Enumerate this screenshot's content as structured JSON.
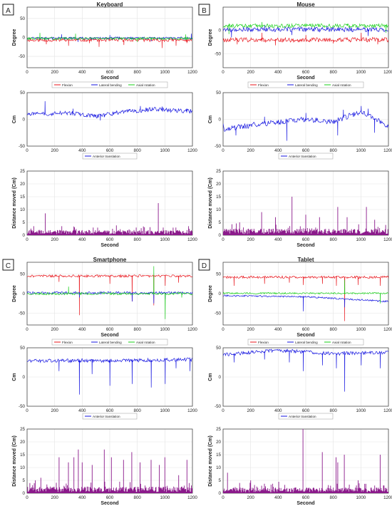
{
  "figure": {
    "panels": [
      {
        "letter": "A",
        "title": "Keyboard"
      },
      {
        "letter": "B",
        "title": "Mouse"
      },
      {
        "letter": "C",
        "title": "Smartphone"
      },
      {
        "letter": "D",
        "title": "Tablet"
      }
    ]
  },
  "colors": {
    "flexion": "#e8141b",
    "lateral_bending": "#1414e0",
    "axial_rotation": "#1ad01a",
    "anterior_translation": "#1414e0",
    "distance": "#8b1a8b",
    "grid": "#e3e3e3",
    "axis": "#333333"
  },
  "legends": {
    "angle": [
      "Flexion",
      "Lateral bending",
      "Axial rotation"
    ],
    "translation": [
      "Anterior translation"
    ]
  },
  "chart_data": [
    {
      "panel": "A",
      "type": "line",
      "title": "Keyboard",
      "xlabel": "Second",
      "ylabel": "Degree",
      "xlim": [
        0,
        1200
      ],
      "xticks": [
        0,
        200,
        400,
        600,
        800,
        1000,
        1200
      ],
      "ylim": [
        -80,
        80
      ],
      "yticks": [
        -50,
        0,
        50
      ],
      "grid": true,
      "legend": "bottom",
      "series": [
        {
          "name": "Flexion",
          "baseline": -7,
          "noise": 4,
          "spikes": [
            [
              140,
              -18
            ],
            [
              300,
              -22
            ],
            [
              450,
              -15
            ],
            [
              520,
              -25
            ],
            [
              700,
              -20
            ],
            [
              980,
              -28
            ],
            [
              1080,
              -22
            ],
            [
              1160,
              -15
            ]
          ]
        },
        {
          "name": "Lateral bending",
          "baseline": -2,
          "noise": 3,
          "spikes": [
            [
              250,
              8
            ],
            [
              370,
              -12
            ],
            [
              600,
              6
            ],
            [
              900,
              -10
            ],
            [
              1190,
              10
            ]
          ]
        },
        {
          "name": "Axial rotation",
          "baseline": -3,
          "noise": 3,
          "spikes": [
            [
              90,
              12
            ],
            [
              350,
              10
            ],
            [
              800,
              -12
            ],
            [
              1150,
              8
            ]
          ]
        }
      ]
    },
    {
      "panel": "A",
      "type": "line",
      "xlabel": "",
      "ylabel": "Cm",
      "xlim": [
        0,
        1200
      ],
      "xticks": [
        0,
        200,
        400,
        600,
        800,
        1000,
        1200
      ],
      "ylim": [
        -50,
        50
      ],
      "yticks": [
        -50,
        0,
        50
      ],
      "grid": true,
      "legend": "bottom",
      "series": [
        {
          "name": "Anterior translation",
          "baseline": 12,
          "noise": 4,
          "spikes": [
            [
              130,
              34
            ],
            [
              330,
              20
            ],
            [
              430,
              5
            ],
            [
              530,
              -2
            ],
            [
              560,
              4
            ],
            [
              820,
              25
            ],
            [
              980,
              24
            ],
            [
              1160,
              20
            ]
          ],
          "trend": [
            [
              0,
              10
            ],
            [
              300,
              12
            ],
            [
              500,
              6
            ],
            [
              700,
              14
            ],
            [
              900,
              19
            ],
            [
              1200,
              15
            ]
          ]
        }
      ]
    },
    {
      "panel": "A",
      "type": "bar",
      "xlabel": "Second",
      "ylabel": "Distance moved (Cm)",
      "xlim": [
        0,
        1200
      ],
      "xticks": [
        0,
        200,
        400,
        600,
        800,
        1000,
        1200
      ],
      "ylim": [
        0,
        25
      ],
      "yticks": [
        0,
        5,
        10,
        15,
        20,
        25
      ],
      "grid": true,
      "baseline": 1.2,
      "spikes": [
        [
          130,
          8.5
        ],
        [
          250,
          3.5
        ],
        [
          480,
          3
        ],
        [
          620,
          2.5
        ],
        [
          790,
          3
        ],
        [
          950,
          12.5
        ],
        [
          1080,
          3
        ],
        [
          1170,
          3.5
        ]
      ]
    },
    {
      "panel": "B",
      "type": "line",
      "title": "Mouse",
      "xlabel": "Second",
      "ylabel": "Degree",
      "xlim": [
        0,
        1200
      ],
      "xticks": [
        0,
        200,
        400,
        600,
        800,
        1000,
        1200
      ],
      "ylim": [
        -80,
        50
      ],
      "yticks": [
        -50,
        0
      ],
      "grid": true,
      "legend": "bottom",
      "series": [
        {
          "name": "Flexion",
          "baseline": -20,
          "noise": 5,
          "spikes": [
            [
              100,
              -30
            ],
            [
              280,
              -5
            ],
            [
              380,
              -32
            ],
            [
              600,
              -10
            ],
            [
              800,
              -28
            ],
            [
              1000,
              -5
            ],
            [
              1120,
              -30
            ]
          ]
        },
        {
          "name": "Lateral bending",
          "baseline": 2,
          "noise": 5,
          "spikes": [
            [
              60,
              -15
            ],
            [
              300,
              12
            ],
            [
              500,
              -10
            ],
            [
              750,
              10
            ],
            [
              1050,
              -12
            ]
          ]
        },
        {
          "name": "Axial rotation",
          "baseline": 10,
          "noise": 4,
          "spikes": [
            [
              40,
              -8
            ],
            [
              280,
              18
            ],
            [
              500,
              15
            ],
            [
              900,
              14
            ],
            [
              1180,
              -5
            ]
          ]
        }
      ]
    },
    {
      "panel": "B",
      "type": "line",
      "xlabel": "",
      "ylabel": "Cm",
      "xlim": [
        0,
        1200
      ],
      "xticks": [
        0,
        200,
        400,
        600,
        800,
        1000,
        1200
      ],
      "ylim": [
        -50,
        50
      ],
      "yticks": [
        -50,
        0,
        50
      ],
      "grid": true,
      "legend": "bottom",
      "series": [
        {
          "name": "Anterior translation",
          "baseline": -8,
          "noise": 5,
          "spikes": [
            [
              90,
              -30
            ],
            [
              300,
              5
            ],
            [
              460,
              -40
            ],
            [
              600,
              12
            ],
            [
              830,
              -30
            ],
            [
              870,
              18
            ],
            [
              1000,
              25
            ],
            [
              1050,
              20
            ],
            [
              1100,
              -25
            ]
          ],
          "trend": [
            [
              0,
              -18
            ],
            [
              300,
              -8
            ],
            [
              600,
              0
            ],
            [
              800,
              -5
            ],
            [
              1000,
              15
            ],
            [
              1200,
              -12
            ]
          ]
        }
      ]
    },
    {
      "panel": "B",
      "type": "bar",
      "xlabel": "Second",
      "ylabel": "Distance moved (Cm)",
      "xlim": [
        0,
        1200
      ],
      "xticks": [
        0,
        200,
        400,
        600,
        800,
        1000,
        1200
      ],
      "ylim": [
        0,
        25
      ],
      "yticks": [
        0,
        5,
        10,
        15,
        20,
        25
      ],
      "grid": true,
      "baseline": 1.5,
      "spikes": [
        [
          120,
          5
        ],
        [
          280,
          9
        ],
        [
          380,
          7
        ],
        [
          500,
          15
        ],
        [
          600,
          8
        ],
        [
          700,
          7
        ],
        [
          830,
          11
        ],
        [
          900,
          7
        ],
        [
          1040,
          11
        ],
        [
          1100,
          6
        ],
        [
          1180,
          4
        ]
      ]
    },
    {
      "panel": "C",
      "type": "line",
      "title": "Smartphone",
      "xlabel": "Second",
      "ylabel": "Degree",
      "xlim": [
        0,
        1200
      ],
      "xticks": [
        0,
        200,
        400,
        600,
        800,
        1000,
        1200
      ],
      "ylim": [
        -80,
        80
      ],
      "yticks": [
        -50,
        0,
        50
      ],
      "grid": true,
      "legend": "bottom",
      "series": [
        {
          "name": "Flexion",
          "baseline": 45,
          "noise": 3,
          "spikes": [
            [
              230,
              30
            ],
            [
              380,
              -55
            ],
            [
              600,
              25
            ],
            [
              760,
              -20
            ],
            [
              920,
              -30
            ],
            [
              1000,
              20
            ],
            [
              1100,
              28
            ]
          ]
        },
        {
          "name": "Lateral bending",
          "baseline": 2,
          "noise": 3,
          "spikes": [
            [
              380,
              -10
            ],
            [
              760,
              -20
            ],
            [
              920,
              -25
            ],
            [
              1000,
              -15
            ]
          ]
        },
        {
          "name": "Axial rotation",
          "baseline": 0,
          "noise": 3,
          "spikes": [
            [
              300,
              18
            ],
            [
              920,
              70
            ],
            [
              1000,
              -65
            ],
            [
              1120,
              -10
            ]
          ]
        }
      ]
    },
    {
      "panel": "C",
      "type": "line",
      "xlabel": "",
      "ylabel": "Cm",
      "xlim": [
        0,
        1200
      ],
      "xticks": [
        0,
        200,
        400,
        600,
        800,
        1000,
        1200
      ],
      "ylim": [
        -50,
        50
      ],
      "yticks": [
        -50,
        0,
        50
      ],
      "grid": true,
      "legend": "bottom",
      "series": [
        {
          "name": "Anterior translation",
          "baseline": 30,
          "noise": 3,
          "spikes": [
            [
              230,
              10
            ],
            [
              380,
              -30
            ],
            [
              470,
              5
            ],
            [
              600,
              -15
            ],
            [
              760,
              -12
            ],
            [
              900,
              -18
            ],
            [
              1000,
              -12
            ],
            [
              1080,
              15
            ],
            [
              1180,
              10
            ]
          ],
          "trend": [
            [
              0,
              28
            ],
            [
              600,
              28
            ],
            [
              1200,
              30
            ]
          ]
        }
      ]
    },
    {
      "panel": "C",
      "type": "bar",
      "xlabel": "Second",
      "ylabel": "Distance moved (Cm)",
      "xlim": [
        0,
        1200
      ],
      "xticks": [
        0,
        200,
        400,
        600,
        800,
        1000,
        1200
      ],
      "ylim": [
        0,
        25
      ],
      "yticks": [
        0,
        5,
        10,
        15,
        20,
        25
      ],
      "grid": true,
      "baseline": 1.5,
      "spikes": [
        [
          60,
          5
        ],
        [
          100,
          6
        ],
        [
          230,
          14
        ],
        [
          300,
          12
        ],
        [
          340,
          14
        ],
        [
          370,
          17
        ],
        [
          400,
          12
        ],
        [
          470,
          11
        ],
        [
          560,
          17
        ],
        [
          610,
          14
        ],
        [
          700,
          13
        ],
        [
          760,
          16
        ],
        [
          820,
          12
        ],
        [
          900,
          13
        ],
        [
          960,
          11
        ],
        [
          1000,
          14
        ],
        [
          1100,
          7
        ],
        [
          1160,
          13
        ]
      ]
    },
    {
      "panel": "D",
      "type": "line",
      "title": "Tablet",
      "xlabel": "Second",
      "ylabel": "Degree",
      "xlim": [
        0,
        1200
      ],
      "xticks": [
        0,
        200,
        400,
        600,
        800,
        1000,
        1200
      ],
      "ylim": [
        -80,
        80
      ],
      "yticks": [
        -50,
        0,
        50
      ],
      "grid": true,
      "legend": "bottom",
      "series": [
        {
          "name": "Flexion",
          "baseline": 42,
          "noise": 3,
          "spikes": [
            [
              80,
              20
            ],
            [
              300,
              25
            ],
            [
              480,
              28
            ],
            [
              580,
              22
            ],
            [
              720,
              25
            ],
            [
              820,
              20
            ],
            [
              880,
              -70
            ],
            [
              980,
              22
            ],
            [
              1140,
              20
            ]
          ]
        },
        {
          "name": "Lateral bending",
          "baseline": -12,
          "noise": 2,
          "spikes": [
            [
              580,
              -45
            ],
            [
              880,
              -35
            ],
            [
              1140,
              -20
            ]
          ],
          "trend": [
            [
              0,
              -5
            ],
            [
              600,
              -8
            ],
            [
              1200,
              -20
            ]
          ]
        },
        {
          "name": "Axial rotation",
          "baseline": 1,
          "noise": 2,
          "spikes": [
            [
              880,
              35
            ],
            [
              1140,
              -25
            ]
          ]
        }
      ]
    },
    {
      "panel": "D",
      "type": "line",
      "xlabel": "",
      "ylabel": "Cm",
      "xlim": [
        0,
        1200
      ],
      "xticks": [
        0,
        200,
        400,
        600,
        800,
        1000,
        1200
      ],
      "ylim": [
        -50,
        50
      ],
      "yticks": [
        -50,
        0,
        50
      ],
      "grid": true,
      "legend": "bottom",
      "series": [
        {
          "name": "Anterior translation",
          "baseline": 42,
          "noise": 3,
          "spikes": [
            [
              80,
              25
            ],
            [
              300,
              30
            ],
            [
              480,
              25
            ],
            [
              580,
              10
            ],
            [
              720,
              20
            ],
            [
              820,
              15
            ],
            [
              880,
              -25
            ],
            [
              1000,
              20
            ],
            [
              1140,
              15
            ]
          ],
          "trend": [
            [
              0,
              38
            ],
            [
              400,
              46
            ],
            [
              800,
              40
            ],
            [
              1200,
              42
            ]
          ]
        }
      ]
    },
    {
      "panel": "D",
      "type": "bar",
      "xlabel": "Second",
      "ylabel": "Distance moved (Cm)",
      "xlim": [
        0,
        1200
      ],
      "xticks": [
        0,
        200,
        400,
        600,
        800,
        1000,
        1200
      ],
      "ylim": [
        0,
        25
      ],
      "yticks": [
        0,
        5,
        10,
        15,
        20,
        25
      ],
      "grid": true,
      "baseline": 1.3,
      "spikes": [
        [
          30,
          8
        ],
        [
          120,
          4
        ],
        [
          200,
          5
        ],
        [
          580,
          25.5
        ],
        [
          720,
          16
        ],
        [
          820,
          14
        ],
        [
          830,
          12
        ],
        [
          880,
          15
        ],
        [
          980,
          5
        ],
        [
          1140,
          15
        ]
      ]
    }
  ]
}
